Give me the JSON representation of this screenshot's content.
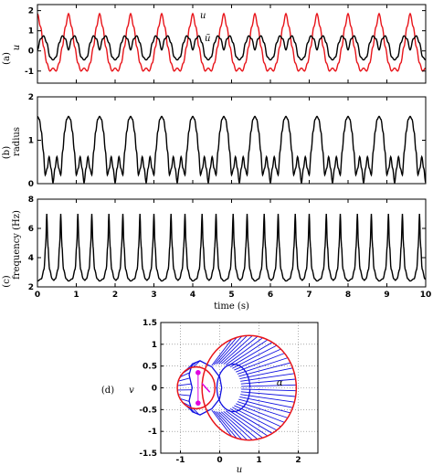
{
  "chart_data": [
    {
      "type": "line",
      "panel_label": "(a)",
      "ylabel": "u",
      "x_range": [
        0,
        10
      ],
      "ylim": [
        -1.6,
        2.3
      ],
      "y_ticks": [
        "2",
        "1",
        "0",
        "-1"
      ],
      "period_s": 0.8,
      "series": [
        {
          "name": "u",
          "color": "#e8141a",
          "one_period": {
            "t": [
              0,
              0.08,
              0.16,
              0.24,
              0.32,
              0.4,
              0.48,
              0.56,
              0.64,
              0.72,
              0.8
            ],
            "values": [
              1.85,
              1.2,
              0.2,
              -0.6,
              -1.0,
              -0.85,
              -1.0,
              -0.6,
              0.2,
              1.2,
              1.85
            ]
          }
        },
        {
          "name": "ũ",
          "color": "#000000",
          "one_period": {
            "t": [
              0,
              0.08,
              0.16,
              0.24,
              0.32,
              0.4,
              0.48,
              0.56,
              0.64,
              0.72,
              0.8
            ],
            "values": [
              0.05,
              0.6,
              0.75,
              0.4,
              -0.3,
              -0.45,
              -0.3,
              0.4,
              0.75,
              0.6,
              0.05
            ]
          }
        }
      ]
    },
    {
      "type": "line",
      "panel_label": "(b)",
      "ylabel": "radius",
      "x_range": [
        0,
        10
      ],
      "ylim": [
        0,
        2
      ],
      "y_ticks": [
        "2",
        "1",
        "0"
      ],
      "period_s": 0.8,
      "series": [
        {
          "color": "#000000",
          "one_period": {
            "t": [
              0,
              0.05,
              0.1,
              0.15,
              0.2,
              0.25,
              0.3,
              0.35,
              0.4,
              0.45,
              0.5,
              0.55,
              0.6,
              0.65,
              0.7,
              0.75,
              0.8
            ],
            "values": [
              1.55,
              1.48,
              1.2,
              0.75,
              0.2,
              0.35,
              0.62,
              0.35,
              0.02,
              0.35,
              0.62,
              0.35,
              0.2,
              0.75,
              1.2,
              1.48,
              1.55
            ]
          }
        }
      ]
    },
    {
      "type": "line",
      "panel_label": "(c)",
      "ylabel": "frequency (Hz)",
      "xlabel": "time (s)",
      "x_range": [
        0,
        10
      ],
      "ylim": [
        2,
        8
      ],
      "y_ticks": [
        "8",
        "6",
        "4",
        "2"
      ],
      "x_ticks": [
        "0",
        "1",
        "2",
        "3",
        "4",
        "5",
        "6",
        "7",
        "8",
        "9",
        "10"
      ],
      "period_s": 0.8,
      "series": [
        {
          "color": "#000000",
          "one_period": {
            "t": [
              0,
              0.1,
              0.17,
              0.21,
              0.24,
              0.27,
              0.31,
              0.38,
              0.42,
              0.46,
              0.53,
              0.57,
              0.6,
              0.63,
              0.67,
              0.74,
              0.8
            ],
            "values": [
              2.4,
              2.55,
              3.2,
              4.8,
              7.0,
              4.8,
              3.2,
              2.55,
              2.45,
              2.55,
              3.2,
              4.8,
              7.0,
              4.8,
              3.2,
              2.55,
              2.4
            ]
          }
        }
      ]
    },
    {
      "type": "scatter",
      "panel_label": "(d)",
      "xlabel": "u",
      "ylabel": "v",
      "xlim": [
        -1.5,
        2.5
      ],
      "ylim": [
        -1.5,
        1.5
      ],
      "x_ticks": [
        "-1",
        "0",
        "1",
        "2"
      ],
      "y_ticks": [
        "1.5",
        "1",
        "0.5",
        "0",
        "-0.5",
        "-1",
        "-1.5"
      ],
      "grid": "dotted",
      "annotation": "α",
      "curves": [
        {
          "name": "outer circle",
          "color": "#e8141a",
          "center": [
            0.75,
            0
          ],
          "radius": 1.2
        },
        {
          "name": "small circle",
          "color": "#e8141a",
          "center": [
            -0.6,
            0
          ],
          "radius": 0.48
        },
        {
          "name": "envelope",
          "color": "#1010e0",
          "points": [
            [
              0.05,
              0.0
            ],
            [
              0.0,
              0.25
            ],
            [
              -0.2,
              0.48
            ],
            [
              -0.5,
              0.62
            ],
            [
              -0.7,
              0.55
            ],
            [
              -0.78,
              0.3
            ],
            [
              -0.7,
              0.0
            ],
            [
              -0.78,
              -0.3
            ],
            [
              -0.7,
              -0.55
            ],
            [
              -0.5,
              -0.62
            ],
            [
              -0.2,
              -0.48
            ],
            [
              0.0,
              -0.25
            ],
            [
              0.05,
              0.0
            ]
          ]
        }
      ],
      "markers": [
        {
          "name": "upper marker",
          "color": "#e000e0",
          "u": -0.55,
          "v": 0.35
        },
        {
          "name": "lower marker",
          "color": "#e000e0",
          "u": -0.55,
          "v": -0.35
        }
      ]
    }
  ]
}
